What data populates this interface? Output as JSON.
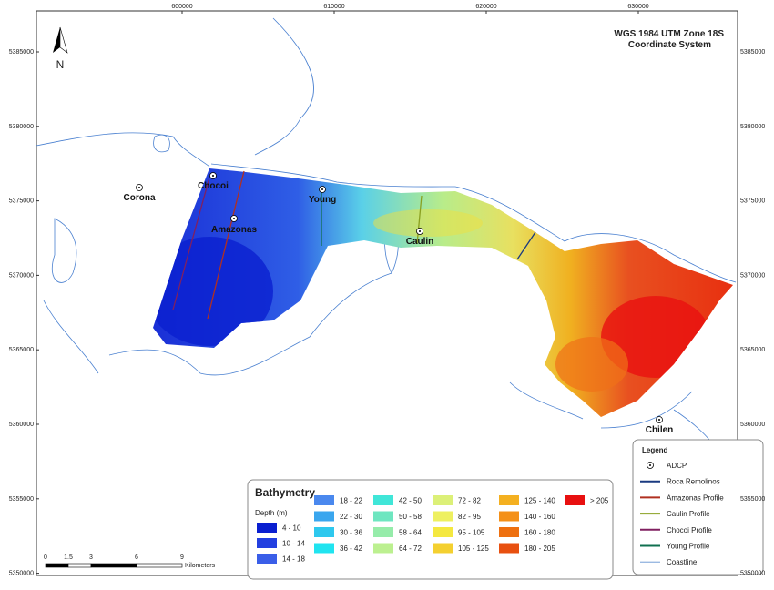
{
  "map": {
    "title": [
      "WGS 1984 UTM Zone 18S",
      "Coordinate System"
    ],
    "north": "N",
    "x_ticks": [
      600000,
      610000,
      620000,
      630000
    ],
    "y_ticks": [
      5385000,
      5380000,
      5375000,
      5370000,
      5365000,
      5360000,
      5355000,
      5350000
    ],
    "sites": [
      "Corona",
      "Chocoi",
      "Young",
      "Amazonas",
      "Caulin",
      "Chilen"
    ]
  },
  "bathymetry": {
    "title": "Bathymetry",
    "subtitle": "Depth (m)",
    "classes": [
      {
        "label": "4 - 10",
        "color": "#0a1fd0"
      },
      {
        "label": "10 - 14",
        "color": "#2340e0"
      },
      {
        "label": "14 - 18",
        "color": "#3a5ee8"
      },
      {
        "label": "18 - 22",
        "color": "#4a88ee"
      },
      {
        "label": "22 - 30",
        "color": "#3aa6ee"
      },
      {
        "label": "30 - 36",
        "color": "#2ec8ee"
      },
      {
        "label": "36 - 42",
        "color": "#20e4f0"
      },
      {
        "label": "42 - 50",
        "color": "#40e6d8"
      },
      {
        "label": "50 - 58",
        "color": "#6ee6c0"
      },
      {
        "label": "58 - 64",
        "color": "#96ecaa"
      },
      {
        "label": "64 - 72",
        "color": "#bcf090"
      },
      {
        "label": "72 - 82",
        "color": "#dcf078"
      },
      {
        "label": "82 - 95",
        "color": "#eef060"
      },
      {
        "label": "95 - 105",
        "color": "#f4e840"
      },
      {
        "label": "105 - 125",
        "color": "#f4d030"
      },
      {
        "label": "125 - 140",
        "color": "#f4b020"
      },
      {
        "label": "140 - 160",
        "color": "#f49018"
      },
      {
        "label": "160 - 180",
        "color": "#ee7010"
      },
      {
        "label": "180 - 205",
        "color": "#e85010"
      },
      {
        "label": "> 205",
        "color": "#e81010"
      }
    ]
  },
  "legend": {
    "title": "Legend",
    "entries": [
      {
        "label": "ADCP",
        "color": "#000000"
      },
      {
        "label": "Roca Remolinos",
        "color": "#1a3a80"
      },
      {
        "label": "Amazonas Profile",
        "color": "#b03020"
      },
      {
        "label": "Caulin Profile",
        "color": "#8aa020"
      },
      {
        "label": "Chocoi Profile",
        "color": "#802060"
      },
      {
        "label": "Young Profile",
        "color": "#107050"
      },
      {
        "label": "Coastline",
        "color": "#6090d0"
      }
    ]
  },
  "scale_bar": {
    "ticks": [
      0,
      1.5,
      3,
      6,
      9
    ],
    "unit": "Kilometers"
  }
}
